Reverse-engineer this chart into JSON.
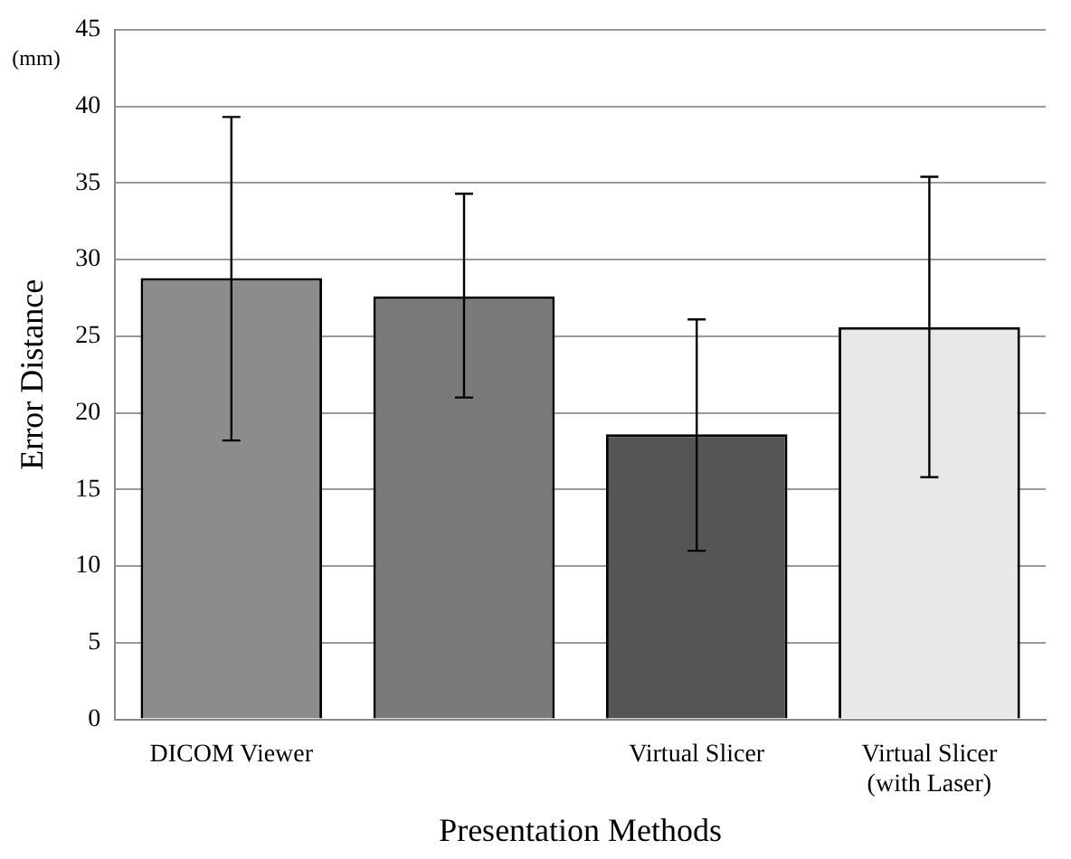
{
  "chart_data": {
    "type": "bar",
    "xlabel": "Presentation Methods",
    "ylabel": "Error Distance",
    "annotations": [
      "(mm)"
    ],
    "categories": [
      "DICOM Viewer",
      null,
      "Virtual Slicer",
      "Virtual Slicer\n(with Laser)"
    ],
    "values": [
      28.8,
      27.6,
      18.6,
      25.6
    ],
    "colors": [
      "#8c8c8c",
      "#7a7a7a",
      "#555555",
      "#e8e8e8"
    ],
    "errors": [
      [
        18.2,
        39.3
      ],
      [
        21,
        34.3
      ],
      [
        11,
        26.1
      ],
      [
        15.8,
        35.4
      ]
    ],
    "ylim": [
      0,
      45
    ],
    "yticks": [
      0,
      5,
      10,
      15,
      20,
      25,
      30,
      35,
      40,
      45
    ],
    "grid": "y"
  }
}
